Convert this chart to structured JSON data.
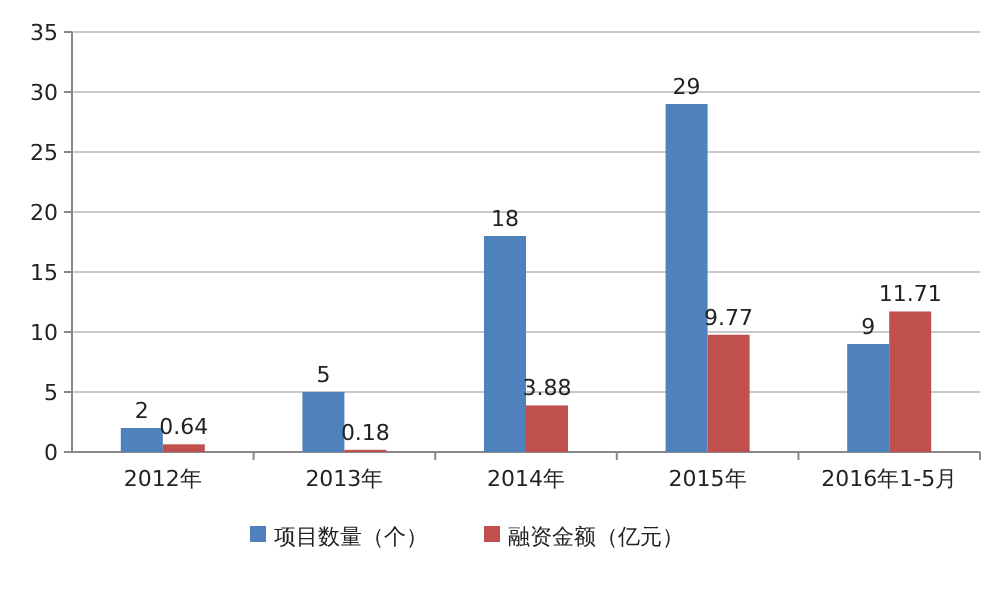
{
  "chart_data": {
    "type": "bar",
    "categories": [
      "2012年",
      "2013年",
      "2014年",
      "2015年",
      "2016年1-5月"
    ],
    "series": [
      {
        "name": "项目数量（个）",
        "color": "#4f81bd",
        "values": [
          2,
          5,
          18,
          29,
          9
        ]
      },
      {
        "name": "融资金额（亿元）",
        "color": "#c0504d",
        "values": [
          0.64,
          0.18,
          3.88,
          9.77,
          11.71
        ]
      }
    ],
    "ylim": [
      0,
      35
    ],
    "yticks": [
      0,
      5,
      10,
      15,
      20,
      25,
      30,
      35
    ],
    "grid": "y",
    "legend": "bottom",
    "data_labels": true
  }
}
